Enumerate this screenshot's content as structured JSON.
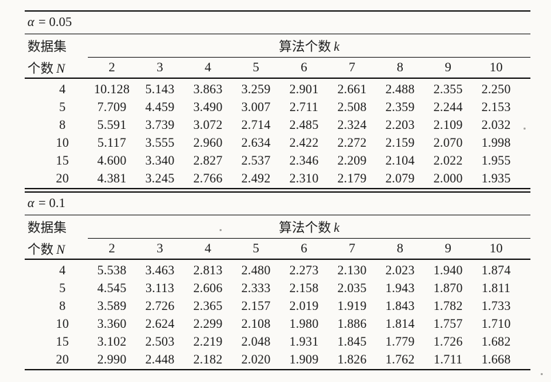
{
  "page": {
    "background": "#fbfaf7",
    "ink": "#1b1b1b"
  },
  "tables": [
    {
      "alpha": {
        "symbol": "α",
        "rest": "= 0.05"
      },
      "row_header": {
        "line1": "数据集",
        "line2_text": "个数",
        "line2_var": "N"
      },
      "col_group_header": {
        "text": "算法个数",
        "var": "k"
      },
      "columns": [
        "2",
        "3",
        "4",
        "5",
        "6",
        "7",
        "8",
        "9",
        "10"
      ],
      "rows": [
        {
          "n": "4",
          "values": [
            "10.128",
            "5.143",
            "3.863",
            "3.259",
            "2.901",
            "2.661",
            "2.488",
            "2.355",
            "2.250"
          ]
        },
        {
          "n": "5",
          "values": [
            "7.709",
            "4.459",
            "3.490",
            "3.007",
            "2.711",
            "2.508",
            "2.359",
            "2.244",
            "2.153"
          ]
        },
        {
          "n": "8",
          "values": [
            "5.591",
            "3.739",
            "3.072",
            "2.714",
            "2.485",
            "2.324",
            "2.203",
            "2.109",
            "2.032"
          ]
        },
        {
          "n": "10",
          "values": [
            "5.117",
            "3.555",
            "2.960",
            "2.634",
            "2.422",
            "2.272",
            "2.159",
            "2.070",
            "1.998"
          ]
        },
        {
          "n": "15",
          "values": [
            "4.600",
            "3.340",
            "2.827",
            "2.537",
            "2.346",
            "2.209",
            "2.104",
            "2.022",
            "1.955"
          ]
        },
        {
          "n": "20",
          "values": [
            "4.381",
            "3.245",
            "2.766",
            "2.492",
            "2.310",
            "2.179",
            "2.079",
            "2.000",
            "1.935"
          ]
        }
      ]
    },
    {
      "alpha": {
        "symbol": "α",
        "rest": "= 0.1"
      },
      "row_header": {
        "line1": "数据集",
        "line2_text": "个数",
        "line2_var": "N"
      },
      "col_group_header": {
        "text": "算法个数",
        "var": "k"
      },
      "columns": [
        "2",
        "3",
        "4",
        "5",
        "6",
        "7",
        "8",
        "9",
        "10"
      ],
      "rows": [
        {
          "n": "4",
          "values": [
            "5.538",
            "3.463",
            "2.813",
            "2.480",
            "2.273",
            "2.130",
            "2.023",
            "1.940",
            "1.874"
          ]
        },
        {
          "n": "5",
          "values": [
            "4.545",
            "3.113",
            "2.606",
            "2.333",
            "2.158",
            "2.035",
            "1.943",
            "1.870",
            "1.811"
          ]
        },
        {
          "n": "8",
          "values": [
            "3.589",
            "2.726",
            "2.365",
            "2.157",
            "2.019",
            "1.919",
            "1.843",
            "1.782",
            "1.733"
          ]
        },
        {
          "n": "10",
          "values": [
            "3.360",
            "2.624",
            "2.299",
            "2.108",
            "1.980",
            "1.886",
            "1.814",
            "1.757",
            "1.710"
          ]
        },
        {
          "n": "15",
          "values": [
            "3.102",
            "2.503",
            "2.219",
            "2.048",
            "1.931",
            "1.845",
            "1.779",
            "1.726",
            "1.682"
          ]
        },
        {
          "n": "20",
          "values": [
            "2.990",
            "2.448",
            "2.182",
            "2.020",
            "1.909",
            "1.826",
            "1.762",
            "1.711",
            "1.668"
          ]
        }
      ]
    }
  ]
}
